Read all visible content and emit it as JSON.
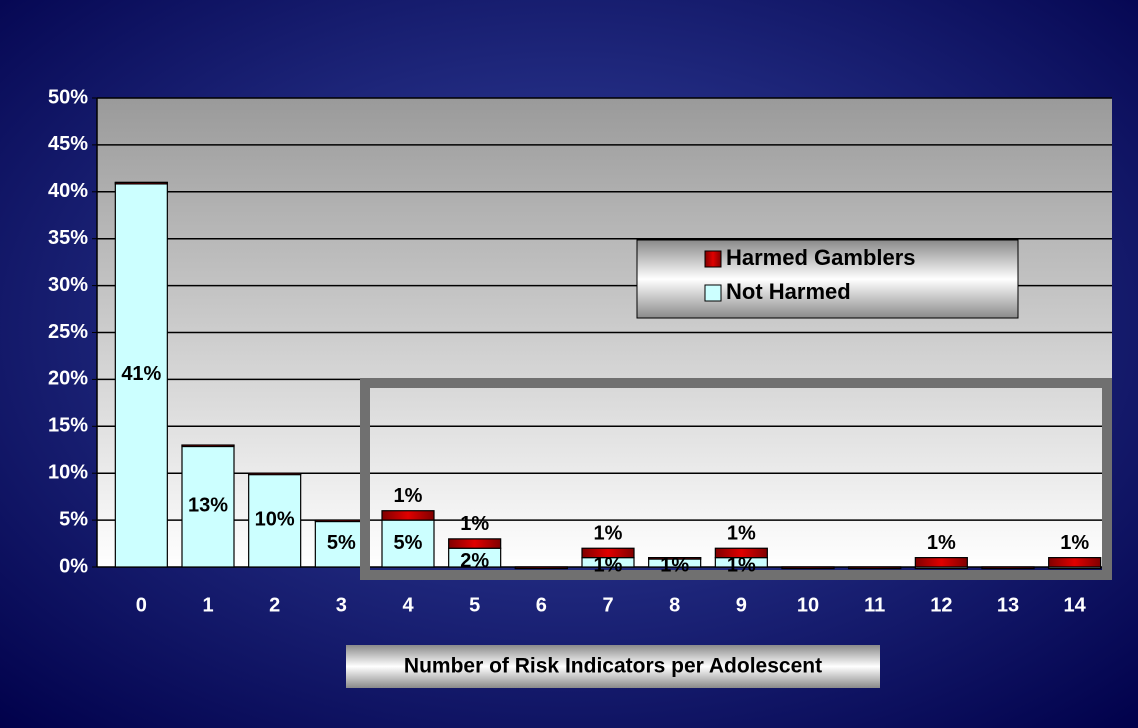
{
  "chart_data": {
    "type": "bar",
    "stacked": true,
    "x_label": "Number of Risk Indicators per Adolescent",
    "categories": [
      "0",
      "1",
      "2",
      "3",
      "4",
      "5",
      "6",
      "7",
      "8",
      "9",
      "10",
      "11",
      "12",
      "13",
      "14"
    ],
    "series": [
      {
        "name": "Harmed Gamblers",
        "color": "#c00000",
        "values": [
          0,
          0,
          0,
          0,
          1,
          1,
          0,
          1,
          0,
          1,
          0,
          0,
          1,
          0,
          1
        ],
        "value_labels": [
          null,
          null,
          null,
          null,
          "1%",
          "1%",
          null,
          "1%",
          null,
          "1%",
          null,
          null,
          "1%",
          null,
          "1%"
        ]
      },
      {
        "name": "Not Harmed",
        "color": "#ccffff",
        "values": [
          41,
          13,
          10,
          5,
          5,
          2,
          0,
          1,
          1,
          1,
          0,
          0,
          0,
          0,
          0
        ],
        "value_labels": [
          "41%",
          "13%",
          "10%",
          "5%",
          "5%",
          "2%",
          null,
          "1%",
          "1%",
          "1%",
          null,
          null,
          null,
          null,
          null
        ]
      }
    ],
    "ylim": [
      0,
      50
    ],
    "yticks": [
      {
        "value": 0,
        "label": "0%"
      },
      {
        "value": 5,
        "label": "5%"
      },
      {
        "value": 10,
        "label": "10%"
      },
      {
        "value": 15,
        "label": "15%"
      },
      {
        "value": 20,
        "label": "20%"
      },
      {
        "value": 25,
        "label": "25%"
      },
      {
        "value": 30,
        "label": "30%"
      },
      {
        "value": 35,
        "label": "35%"
      },
      {
        "value": 40,
        "label": "40%"
      },
      {
        "value": 45,
        "label": "45%"
      },
      {
        "value": 50,
        "label": "50%"
      }
    ],
    "grid": true
  }
}
